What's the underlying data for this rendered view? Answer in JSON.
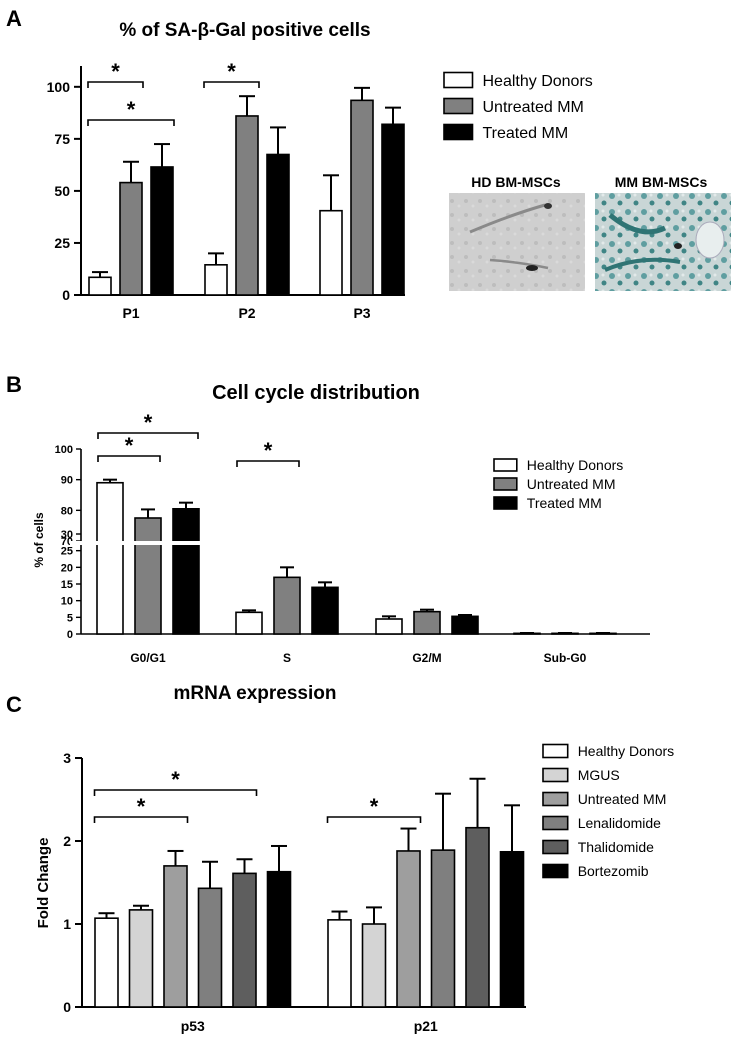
{
  "panels": {
    "A": {
      "letter": "A"
    },
    "B": {
      "letter": "B"
    },
    "C": {
      "letter": "C"
    }
  },
  "colors": {
    "healthy": "#ffffff",
    "untreated": "#808080",
    "treated": "#000000",
    "mgus": "#d4d4d4",
    "untreated_c": "#9e9e9e",
    "lenalidomide": "#7f7f7f",
    "thalidomide": "#5e5e5e",
    "bortezomib": "#000000"
  },
  "images": {
    "hd_label": "HD BM-MSCs",
    "mm_label": "MM BM-MSCs"
  },
  "chart_data": [
    {
      "id": "A",
      "type": "bar",
      "title": "% of SA-β-Gal positive cells",
      "ylabel": "",
      "xlabel": "",
      "ylim": [
        0,
        110
      ],
      "yticks": [
        "0",
        "25",
        "50",
        "75",
        "100"
      ],
      "categories": [
        "P1",
        "P2",
        "P3"
      ],
      "series": [
        {
          "name": "Healthy Donors",
          "values": [
            8.5,
            14.5,
            40.5
          ],
          "errors": [
            2.5,
            5.5,
            17
          ]
        },
        {
          "name": "Untreated MM",
          "values": [
            54,
            86,
            93.5
          ],
          "errors": [
            10,
            9.5,
            6
          ]
        },
        {
          "name": "Treated MM",
          "values": [
            61.5,
            67.5,
            82
          ],
          "errors": [
            11,
            13,
            8
          ]
        }
      ],
      "annotations": [
        {
          "text": "*",
          "from": "P1 Healthy Donors",
          "to": "P1 Untreated MM"
        },
        {
          "text": "*",
          "from": "P1 Healthy Donors",
          "to": "P1 Treated MM"
        },
        {
          "text": "*",
          "from": "P2 Healthy Donors",
          "to": "P2 Untreated MM"
        }
      ]
    },
    {
      "id": "B",
      "type": "bar",
      "title": "Cell cycle distribution",
      "ylabel": "% of cells",
      "xlabel": "",
      "ylim": [
        0,
        100
      ],
      "axis_break": [
        30,
        70
      ],
      "yticks_upper": [
        "70",
        "80",
        "90",
        "100"
      ],
      "yticks_lower": [
        "0",
        "5",
        "10",
        "15",
        "20",
        "25",
        "30"
      ],
      "categories": [
        "G0/G1",
        "S",
        "G2/M",
        "Sub-G0"
      ],
      "series": [
        {
          "name": "Healthy Donors",
          "values": [
            89,
            6.5,
            4.5,
            0.2
          ],
          "errors": [
            1,
            0.6,
            0.8,
            0.1
          ]
        },
        {
          "name": "Untreated MM",
          "values": [
            77.5,
            17,
            6.7,
            0.2
          ],
          "errors": [
            2.8,
            3,
            0.6,
            0.1
          ]
        },
        {
          "name": "Treated MM",
          "values": [
            80.5,
            14,
            5.3,
            0.2
          ],
          "errors": [
            2,
            1.5,
            0.4,
            0.1
          ]
        }
      ],
      "annotations": [
        {
          "text": "*",
          "from": "G0/G1 Healthy Donors",
          "to": "G0/G1 Untreated MM"
        },
        {
          "text": "*",
          "from": "G0/G1 Healthy Donors",
          "to": "G0/G1 Treated MM"
        },
        {
          "text": "*",
          "from": "S Healthy Donors",
          "to": "S Untreated MM"
        }
      ]
    },
    {
      "id": "C",
      "type": "bar",
      "title": "mRNA expression",
      "ylabel": "Fold Change",
      "xlabel": "",
      "ylim": [
        0,
        3
      ],
      "yticks": [
        "0",
        "1",
        "2",
        "3"
      ],
      "categories": [
        "p53",
        "p21"
      ],
      "series": [
        {
          "name": "Healthy Donors",
          "values": [
            1.07,
            1.05
          ],
          "errors": [
            0.06,
            0.1
          ]
        },
        {
          "name": "MGUS",
          "values": [
            1.17,
            1.0
          ],
          "errors": [
            0.05,
            0.2
          ]
        },
        {
          "name": "Untreated MM",
          "values": [
            1.7,
            1.88
          ],
          "errors": [
            0.18,
            0.27
          ]
        },
        {
          "name": "Lenalidomide",
          "values": [
            1.43,
            1.89
          ],
          "errors": [
            0.32,
            0.68
          ]
        },
        {
          "name": "Thalidomide",
          "values": [
            1.61,
            2.16
          ],
          "errors": [
            0.17,
            0.59
          ]
        },
        {
          "name": "Bortezomib",
          "values": [
            1.63,
            1.87
          ],
          "errors": [
            0.31,
            0.56
          ]
        }
      ],
      "annotations": [
        {
          "text": "*",
          "from": "p53 Healthy Donors",
          "to": "p53 Untreated MM"
        },
        {
          "text": "*",
          "from": "p53 Healthy Donors",
          "to": "p53 Thalidomide"
        },
        {
          "text": "*",
          "from": "p21 Healthy Donors",
          "to": "p21 Untreated MM"
        }
      ]
    }
  ]
}
